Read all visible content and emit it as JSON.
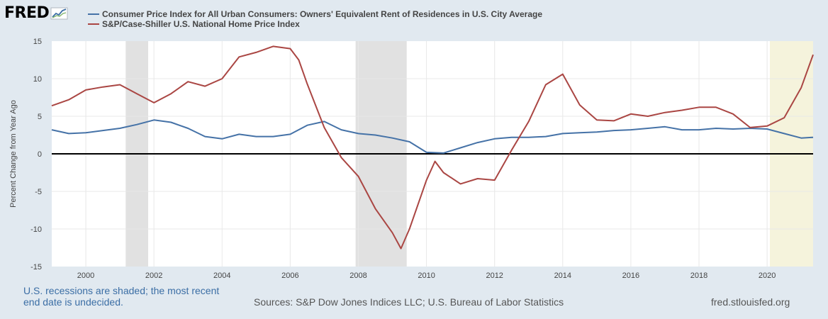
{
  "header": {
    "logo_text": "FRED"
  },
  "footer": {
    "note_line1": "U.S. recessions are shaded; the most recent",
    "note_line2": "end date is undecided.",
    "sources": "Sources: S&P Dow Jones Indices LLC; U.S. Bureau of Labor Statistics",
    "site": "fred.stlouisfed.org"
  },
  "colors": {
    "series_blue": "#4572a7",
    "series_red": "#aa4643",
    "recession": "#e1e1e1",
    "undecided_recession": "#f5f3dc",
    "zero_line": "#000000",
    "grid": "#e8e8e8"
  },
  "chart_data": {
    "type": "line",
    "ylabel": "Percent Change from Year Ago",
    "xlim": [
      1999.0,
      2021.35
    ],
    "ylim": [
      -15,
      15
    ],
    "y_ticks": [
      15,
      10,
      5,
      0,
      -5,
      -10,
      -15
    ],
    "x_ticks": [
      2000,
      2002,
      2004,
      2006,
      2008,
      2010,
      2012,
      2014,
      2016,
      2018,
      2020
    ],
    "grid": true,
    "legend_position": "top-left",
    "recessions": [
      [
        2001.17,
        2001.83
      ],
      [
        2007.92,
        2009.42
      ]
    ],
    "undecided_recession": [
      2020.08,
      2021.35
    ],
    "series": [
      {
        "name": "Consumer Price Index for All Urban Consumers: Owners' Equivalent Rent of Residences in U.S. City Average",
        "color": "#4572a7",
        "x": [
          1999.0,
          1999.5,
          2000.0,
          2000.5,
          2001.0,
          2001.5,
          2002.0,
          2002.5,
          2003.0,
          2003.5,
          2004.0,
          2004.5,
          2005.0,
          2005.5,
          2006.0,
          2006.5,
          2007.0,
          2007.5,
          2008.0,
          2008.5,
          2009.0,
          2009.5,
          2010.0,
          2010.5,
          2011.0,
          2011.5,
          2012.0,
          2012.5,
          2013.0,
          2013.5,
          2014.0,
          2014.5,
          2015.0,
          2015.5,
          2016.0,
          2016.5,
          2017.0,
          2017.5,
          2018.0,
          2018.5,
          2019.0,
          2019.5,
          2020.0,
          2020.5,
          2021.0,
          2021.35
        ],
        "values": [
          3.2,
          2.7,
          2.8,
          3.1,
          3.4,
          3.9,
          4.5,
          4.2,
          3.4,
          2.3,
          2.0,
          2.6,
          2.3,
          2.3,
          2.6,
          3.8,
          4.3,
          3.2,
          2.7,
          2.5,
          2.1,
          1.6,
          0.2,
          0.1,
          0.8,
          1.5,
          2.0,
          2.2,
          2.2,
          2.3,
          2.7,
          2.8,
          2.9,
          3.1,
          3.2,
          3.4,
          3.6,
          3.2,
          3.2,
          3.4,
          3.3,
          3.4,
          3.3,
          2.7,
          2.1,
          2.2
        ]
      },
      {
        "name": "S&P/Case-Shiller U.S. National Home Price Index",
        "color": "#aa4643",
        "x": [
          1999.0,
          1999.5,
          2000.0,
          2000.5,
          2001.0,
          2001.5,
          2002.0,
          2002.5,
          2003.0,
          2003.5,
          2004.0,
          2004.5,
          2005.0,
          2005.5,
          2006.0,
          2006.25,
          2006.5,
          2007.0,
          2007.5,
          2008.0,
          2008.5,
          2009.0,
          2009.25,
          2009.5,
          2010.0,
          2010.25,
          2010.5,
          2011.0,
          2011.5,
          2012.0,
          2012.5,
          2013.0,
          2013.5,
          2014.0,
          2014.5,
          2015.0,
          2015.5,
          2016.0,
          2016.5,
          2017.0,
          2017.5,
          2018.0,
          2018.5,
          2019.0,
          2019.5,
          2020.0,
          2020.5,
          2021.0,
          2021.35
        ],
        "values": [
          6.4,
          7.2,
          8.5,
          8.9,
          9.2,
          8.0,
          6.8,
          8.0,
          9.6,
          9.0,
          10.0,
          12.9,
          13.5,
          14.3,
          14.0,
          12.5,
          9.3,
          3.5,
          -0.5,
          -3.0,
          -7.3,
          -10.5,
          -12.6,
          -10.0,
          -3.5,
          -1.0,
          -2.5,
          -4.0,
          -3.3,
          -3.5,
          0.5,
          4.3,
          9.2,
          10.6,
          6.5,
          4.5,
          4.4,
          5.3,
          5.0,
          5.5,
          5.8,
          6.2,
          6.2,
          5.3,
          3.5,
          3.7,
          4.8,
          8.8,
          13.2
        ]
      }
    ]
  }
}
